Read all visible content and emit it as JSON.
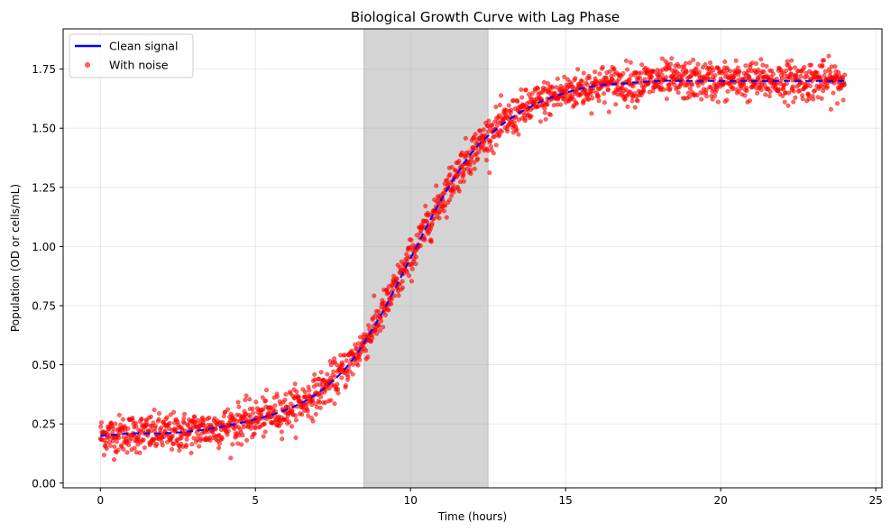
{
  "chart_data": {
    "type": "scatter",
    "title": "Biological Growth Curve with Lag Phase",
    "xlabel": "Time (hours)",
    "ylabel": "Population (OD or cells/mL)",
    "xlim": [
      -1.2,
      25.2
    ],
    "ylim": [
      -0.02,
      1.92
    ],
    "xticks": [
      0,
      5,
      10,
      15,
      20,
      25
    ],
    "yticks": [
      0.0,
      0.25,
      0.5,
      0.75,
      1.0,
      1.25,
      1.5,
      1.75
    ],
    "xtick_labels": [
      "0",
      "5",
      "10",
      "15",
      "20",
      "25"
    ],
    "ytick_labels": [
      "0.00",
      "0.25",
      "0.50",
      "0.75",
      "1.00",
      "1.25",
      "1.50",
      "1.75"
    ],
    "grid": true,
    "legend_position": "top-left",
    "shaded_region": {
      "x_start": 8.5,
      "x_end": 12.5,
      "color": "#a9a9a9"
    },
    "series": [
      {
        "name": "Clean signal",
        "kind": "line",
        "color": "#0000ff",
        "x": [
          0,
          1,
          2,
          3,
          4,
          5,
          6,
          7,
          8,
          9,
          10,
          11,
          12,
          13,
          14,
          15,
          16,
          17,
          18,
          19,
          20,
          21,
          22,
          23,
          24
        ],
        "y": [
          0.2,
          0.21,
          0.21,
          0.22,
          0.24,
          0.27,
          0.31,
          0.38,
          0.5,
          0.7,
          0.95,
          1.2,
          1.4,
          1.52,
          1.6,
          1.65,
          1.68,
          1.69,
          1.7,
          1.7,
          1.7,
          1.7,
          1.7,
          1.7,
          1.7
        ]
      },
      {
        "name": "With noise",
        "kind": "scatter",
        "color": "#ff0000",
        "n_points": 2000,
        "x_range": [
          0,
          24
        ],
        "noise_sd": 0.04,
        "follows": "Clean signal"
      }
    ]
  },
  "legend": {
    "items": [
      {
        "label": "Clean signal",
        "marker": "line",
        "color": "#0000ff"
      },
      {
        "label": "With noise",
        "marker": "dot",
        "color": "#ff0000"
      }
    ]
  }
}
